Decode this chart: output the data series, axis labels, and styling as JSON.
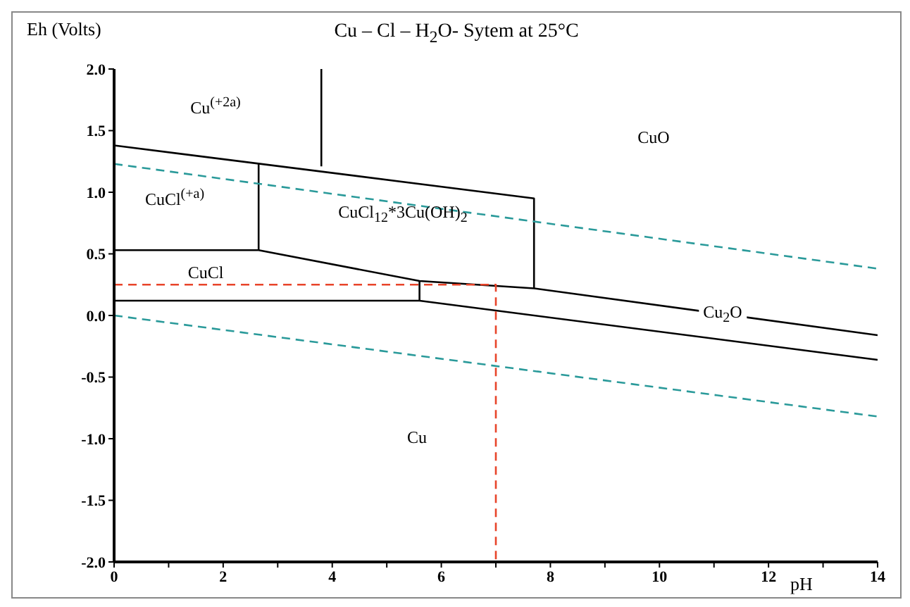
{
  "chart_data": {
    "type": "line",
    "title": "Cu – Cl – H$_{2}$O-  Sytem at 25°C",
    "xlabel": "pH",
    "ylabel": "Eh (Volts)",
    "xlim": [
      0,
      14
    ],
    "xticks": [
      0,
      {
        "value": 1,
        "label": null
      },
      2,
      {
        "value": 3,
        "label": null
      },
      4,
      {
        "value": 5,
        "label": null
      },
      6,
      {
        "value": 7,
        "label": null
      },
      8,
      {
        "value": 9,
        "label": null
      },
      10,
      {
        "value": 11,
        "label": null
      },
      12,
      {
        "value": 13,
        "label": null
      },
      14
    ],
    "ylim": [
      -2,
      2
    ],
    "yticks": [
      {
        "value": -2,
        "label": "-2.0"
      },
      -1.5,
      {
        "value": -1,
        "label": "-1.0"
      },
      -0.5,
      {
        "value": 0,
        "label": "0.0"
      },
      0.5,
      {
        "value": 1,
        "label": "1.0"
      },
      1.5,
      {
        "value": 2,
        "label": "2.0"
      }
    ],
    "marker": "none",
    "series": [
      {
        "color": "#000000",
        "line_style": "solid",
        "x": [
          0,
          7.7,
          7.7
        ],
        "values": [
          1.38,
          0.95,
          0.22
        ]
      },
      {
        "color": "#000000",
        "line_style": "solid",
        "x": [
          3.8,
          3.8
        ],
        "values": [
          2.0,
          1.21
        ]
      },
      {
        "color": "#000000",
        "line_style": "solid",
        "x": [
          2.65,
          2.65
        ],
        "values": [
          1.23,
          0.53
        ]
      },
      {
        "color": "#000000",
        "line_style": "solid",
        "x": [
          0,
          2.65,
          5.6,
          7.7,
          14
        ],
        "values": [
          0.53,
          0.53,
          0.28,
          0.22,
          -0.16
        ]
      },
      {
        "color": "#000000",
        "line_style": "solid",
        "x": [
          0,
          5.6,
          14
        ],
        "values": [
          0.12,
          0.12,
          -0.36
        ]
      },
      {
        "color": "#000000",
        "line_style": "solid",
        "x": [
          5.6,
          5.6
        ],
        "values": [
          0.12,
          0.28
        ]
      },
      {
        "color": "#2a9a9a",
        "line_style": "dashed",
        "x": [
          0,
          14
        ],
        "values": [
          1.23,
          0.38
        ]
      },
      {
        "color": "#2a9a9a",
        "line_style": "dashed",
        "x": [
          0,
          14
        ],
        "values": [
          0,
          -0.82
        ]
      },
      {
        "color": "#e8442a",
        "line_style": "dashed",
        "x": [
          0,
          7.0,
          7.0
        ],
        "values": [
          0.25,
          0.25,
          -2.0
        ]
      }
    ],
    "annotations": [
      "Cu$^{(+2a)}$",
      "CuO",
      "CuCl$^{(+a)}$",
      "CuCl$_{12}$*3Cu(OH)$_{2}$",
      "CuCl",
      "Cu$_{2}$O",
      "Cu"
    ]
  }
}
